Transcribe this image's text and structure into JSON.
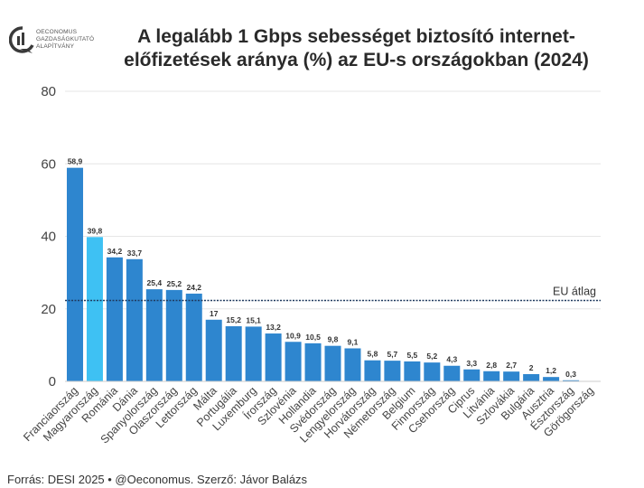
{
  "brand": {
    "logo_lines": [
      "OECONOMUS",
      "GAZDASÁGKUTATÓ",
      "ALAPÍTVÁNY"
    ],
    "logo_icon": "oeconomus-logo-icon"
  },
  "title_lines": [
    "A legalább 1 Gbps sebességet biztosító internet-",
    "előfizetések aránya (%) az EU-s országokban (2024)"
  ],
  "source": "Forrás: DESI 2025 • @Oeconomus. Szerző: Jávor Balázs",
  "colors": {
    "bar": "#2e86cf",
    "highlight": "#3ec1f3",
    "grid": "#e6e6e6",
    "refline": "#1f3a5f"
  },
  "chart_data": {
    "type": "bar",
    "title": "A legalább 1 Gbps sebességet biztosító internet-előfizetések aránya (%) az EU-s országokban (2024)",
    "xlabel": "",
    "ylabel": "",
    "ylim": [
      0,
      80
    ],
    "yticks": [
      0,
      20,
      40,
      60,
      80
    ],
    "grid": true,
    "categories": [
      "Franciaország",
      "Magyarország",
      "Románia",
      "Dánia",
      "Spanyolország",
      "Olaszország",
      "Lettország",
      "Málta",
      "Portugália",
      "Luxemburg",
      "Írország",
      "Szlovénia",
      "Hollandia",
      "Svédország",
      "Lengyelország",
      "Horvátország",
      "Németország",
      "Belgium",
      "Finnország",
      "Csehország",
      "Ciprus",
      "Litvánia",
      "Szlovákia",
      "Bulgária",
      "Ausztria",
      "Észtország",
      "Görögország"
    ],
    "values": [
      58.9,
      39.8,
      34.2,
      33.7,
      25.4,
      25.2,
      24.2,
      17,
      15.2,
      15.1,
      13.2,
      10.9,
      10.5,
      9.8,
      9.1,
      5.8,
      5.7,
      5.5,
      5.2,
      4.3,
      3.3,
      2.8,
      2.7,
      2,
      1.2,
      0.3,
      0
    ],
    "value_labels": [
      "58,9",
      "39,8",
      "34,2",
      "33,7",
      "25,4",
      "25,2",
      "24,2",
      "17",
      "15,2",
      "15,1",
      "13,2",
      "10,9",
      "10,5",
      "9,8",
      "9,1",
      "5,8",
      "5,7",
      "5,5",
      "5,2",
      "4,3",
      "3,3",
      "2,8",
      "2,7",
      "2",
      "1,2",
      "0,3",
      ""
    ],
    "highlight_index": 1,
    "reference_line": {
      "value": 22.3,
      "label": "EU átlag"
    }
  }
}
